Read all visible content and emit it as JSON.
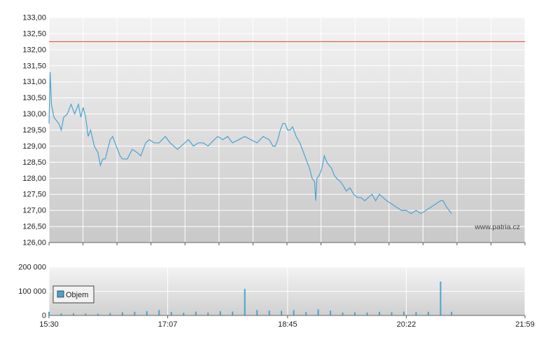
{
  "chart_data": [
    {
      "type": "line",
      "title": "",
      "xlabel": "",
      "ylabel": "",
      "ylim": [
        126.0,
        133.0
      ],
      "yticks": [
        "126,00",
        "126,50",
        "127,00",
        "127,50",
        "128,00",
        "128,50",
        "129,00",
        "129,50",
        "130,00",
        "130,50",
        "131,00",
        "131,50",
        "132,00",
        "132,50",
        "133,00"
      ],
      "xticks": [
        "15:30",
        "17:07",
        "18:45",
        "20:22",
        "21:59"
      ],
      "watermark": "www.patria.cz",
      "reference_line": {
        "value": 132.25,
        "color": "#dd4433"
      },
      "series": [
        {
          "color": "#4aa3cf",
          "points": [
            [
              "15:30",
              129.7
            ],
            [
              "15:31",
              131.3
            ],
            [
              "15:32",
              130.3
            ],
            [
              "15:34",
              129.9
            ],
            [
              "15:36",
              129.8
            ],
            [
              "15:38",
              129.7
            ],
            [
              "15:40",
              129.5
            ],
            [
              "15:42",
              129.9
            ],
            [
              "15:45",
              130.0
            ],
            [
              "15:48",
              130.3
            ],
            [
              "15:51",
              130.0
            ],
            [
              "15:54",
              130.3
            ],
            [
              "15:56",
              129.9
            ],
            [
              "15:58",
              130.2
            ],
            [
              "16:00",
              129.9
            ],
            [
              "16:02",
              129.3
            ],
            [
              "16:04",
              129.5
            ],
            [
              "16:07",
              129.0
            ],
            [
              "16:10",
              128.8
            ],
            [
              "16:12",
              128.4
            ],
            [
              "16:14",
              128.6
            ],
            [
              "16:16",
              128.6
            ],
            [
              "16:18",
              128.9
            ],
            [
              "16:20",
              129.2
            ],
            [
              "16:22",
              129.3
            ],
            [
              "16:24",
              129.1
            ],
            [
              "16:26",
              128.9
            ],
            [
              "16:28",
              128.7
            ],
            [
              "16:30",
              128.6
            ],
            [
              "16:34",
              128.6
            ],
            [
              "16:38",
              128.9
            ],
            [
              "16:42",
              128.8
            ],
            [
              "16:45",
              128.7
            ],
            [
              "16:47",
              128.9
            ],
            [
              "16:49",
              129.1
            ],
            [
              "16:52",
              129.2
            ],
            [
              "16:56",
              129.1
            ],
            [
              "17:00",
              129.1
            ],
            [
              "17:05",
              129.3
            ],
            [
              "17:09",
              129.1
            ],
            [
              "17:12",
              129.0
            ],
            [
              "17:15",
              128.9
            ],
            [
              "17:18",
              129.0
            ],
            [
              "17:21",
              129.1
            ],
            [
              "17:24",
              129.2
            ],
            [
              "17:28",
              129.0
            ],
            [
              "17:32",
              129.1
            ],
            [
              "17:36",
              129.1
            ],
            [
              "17:40",
              129.0
            ],
            [
              "17:45",
              129.2
            ],
            [
              "17:48",
              129.3
            ],
            [
              "17:52",
              129.2
            ],
            [
              "17:56",
              129.3
            ],
            [
              "18:00",
              129.1
            ],
            [
              "18:05",
              129.2
            ],
            [
              "18:10",
              129.3
            ],
            [
              "18:15",
              129.2
            ],
            [
              "18:20",
              129.1
            ],
            [
              "18:25",
              129.3
            ],
            [
              "18:30",
              129.2
            ],
            [
              "18:33",
              129.0
            ],
            [
              "18:35",
              129.0
            ],
            [
              "18:37",
              129.2
            ],
            [
              "18:39",
              129.5
            ],
            [
              "18:41",
              129.7
            ],
            [
              "18:43",
              129.7
            ],
            [
              "18:45",
              129.5
            ],
            [
              "18:47",
              129.5
            ],
            [
              "18:49",
              129.6
            ],
            [
              "18:52",
              129.3
            ],
            [
              "18:55",
              129.1
            ],
            [
              "18:57",
              128.9
            ],
            [
              "19:00",
              128.6
            ],
            [
              "19:03",
              128.3
            ],
            [
              "19:05",
              128.0
            ],
            [
              "19:07",
              127.9
            ],
            [
              "19:08",
              127.3
            ],
            [
              "19:09",
              128.0
            ],
            [
              "19:11",
              128.1
            ],
            [
              "19:13",
              128.3
            ],
            [
              "19:15",
              128.7
            ],
            [
              "19:17",
              128.5
            ],
            [
              "19:19",
              128.4
            ],
            [
              "19:21",
              128.3
            ],
            [
              "19:23",
              128.1
            ],
            [
              "19:25",
              128.0
            ],
            [
              "19:28",
              127.9
            ],
            [
              "19:30",
              127.8
            ],
            [
              "19:33",
              127.6
            ],
            [
              "19:36",
              127.7
            ],
            [
              "19:39",
              127.5
            ],
            [
              "19:42",
              127.4
            ],
            [
              "19:45",
              127.4
            ],
            [
              "19:48",
              127.3
            ],
            [
              "19:51",
              127.4
            ],
            [
              "19:54",
              127.5
            ],
            [
              "19:57",
              127.3
            ],
            [
              "20:00",
              127.5
            ],
            [
              "20:03",
              127.4
            ],
            [
              "20:06",
              127.3
            ],
            [
              "20:10",
              127.2
            ],
            [
              "20:14",
              127.1
            ],
            [
              "20:18",
              127.0
            ],
            [
              "20:22",
              127.0
            ],
            [
              "20:26",
              126.9
            ],
            [
              "20:30",
              127.0
            ],
            [
              "20:34",
              126.9
            ],
            [
              "20:38",
              127.0
            ],
            [
              "20:42",
              127.1
            ],
            [
              "20:46",
              127.2
            ],
            [
              "20:50",
              127.3
            ],
            [
              "20:52",
              127.3
            ],
            [
              "20:55",
              127.1
            ],
            [
              "20:57",
              127.0
            ],
            [
              "20:59",
              126.9
            ]
          ]
        }
      ]
    },
    {
      "type": "bar",
      "title": "",
      "xlabel": "",
      "ylabel": "",
      "ylim": [
        0,
        200000
      ],
      "yticks": [
        "0",
        "100 000",
        "200 000"
      ],
      "xticks": [
        "15:30",
        "17:07",
        "18:45",
        "20:22",
        "21:59"
      ],
      "series": [
        {
          "name": "Objem",
          "color": "#4aa3cf",
          "times": [
            "15:30",
            "15:40",
            "15:50",
            "16:00",
            "16:10",
            "16:20",
            "16:30",
            "16:40",
            "16:50",
            "17:00",
            "17:10",
            "17:20",
            "17:30",
            "17:40",
            "17:50",
            "18:00",
            "18:10",
            "18:20",
            "18:30",
            "18:40",
            "18:50",
            "19:00",
            "19:10",
            "19:20",
            "19:30",
            "19:40",
            "19:50",
            "20:00",
            "20:10",
            "20:20",
            "20:30",
            "20:40",
            "20:50",
            "20:59"
          ],
          "values": [
            15000,
            8000,
            9000,
            8000,
            7000,
            10000,
            13000,
            15000,
            18000,
            22000,
            14000,
            11000,
            16000,
            12000,
            18000,
            16000,
            110000,
            22000,
            20000,
            19000,
            22000,
            14000,
            25000,
            20000,
            12000,
            13000,
            12000,
            15000,
            13000,
            16000,
            14000,
            15000,
            140000,
            15000
          ]
        }
      ]
    }
  ]
}
